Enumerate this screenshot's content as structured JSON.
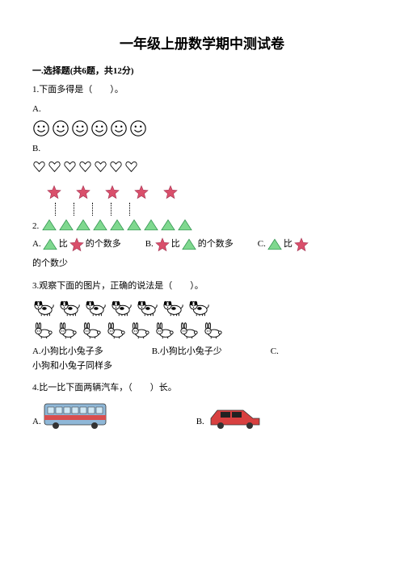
{
  "title": "一年级上册数学期中测试卷",
  "section1": {
    "header": "一.选择题(共6题，共12分)",
    "q1": {
      "text": "1.下面多得是（　　）。",
      "optA": "A.",
      "optB": "B.",
      "smiley_count": 6,
      "heart_count": 7
    },
    "q2": {
      "number": "2.",
      "star_count": 5,
      "triangle_count": 9,
      "optA_prefix": "A.",
      "optA_mid": "比",
      "optA_suffix": "的个数多",
      "optB_prefix": "B.",
      "optB_mid": "比",
      "optB_suffix": "的个数多",
      "optC_prefix": "C.",
      "optC_mid": "比",
      "optC_suffix2": "的个数少"
    },
    "q3": {
      "text": "3.观察下面的图片，正确的说法是（　　）。",
      "dog_count": 7,
      "rabbit_count": 8,
      "optA": "A.小狗比小兔子多",
      "optB": "B.小狗比小兔子少",
      "optC": "C.",
      "optC_line2": "小狗和小兔子同样多"
    },
    "q4": {
      "text": "4.比一比下面两辆汽车，（　　）长。",
      "optA": "A.",
      "optB": "B."
    }
  },
  "colors": {
    "star_fill": "#d94f6b",
    "star_stroke": "#a03050",
    "triangle_fill": "#7fd88f",
    "triangle_stroke": "#2a8f4a",
    "bus_body": "#8fb8d8",
    "bus_stripe": "#d84f4f",
    "car_body": "#d84040",
    "car_dark": "#222222"
  }
}
